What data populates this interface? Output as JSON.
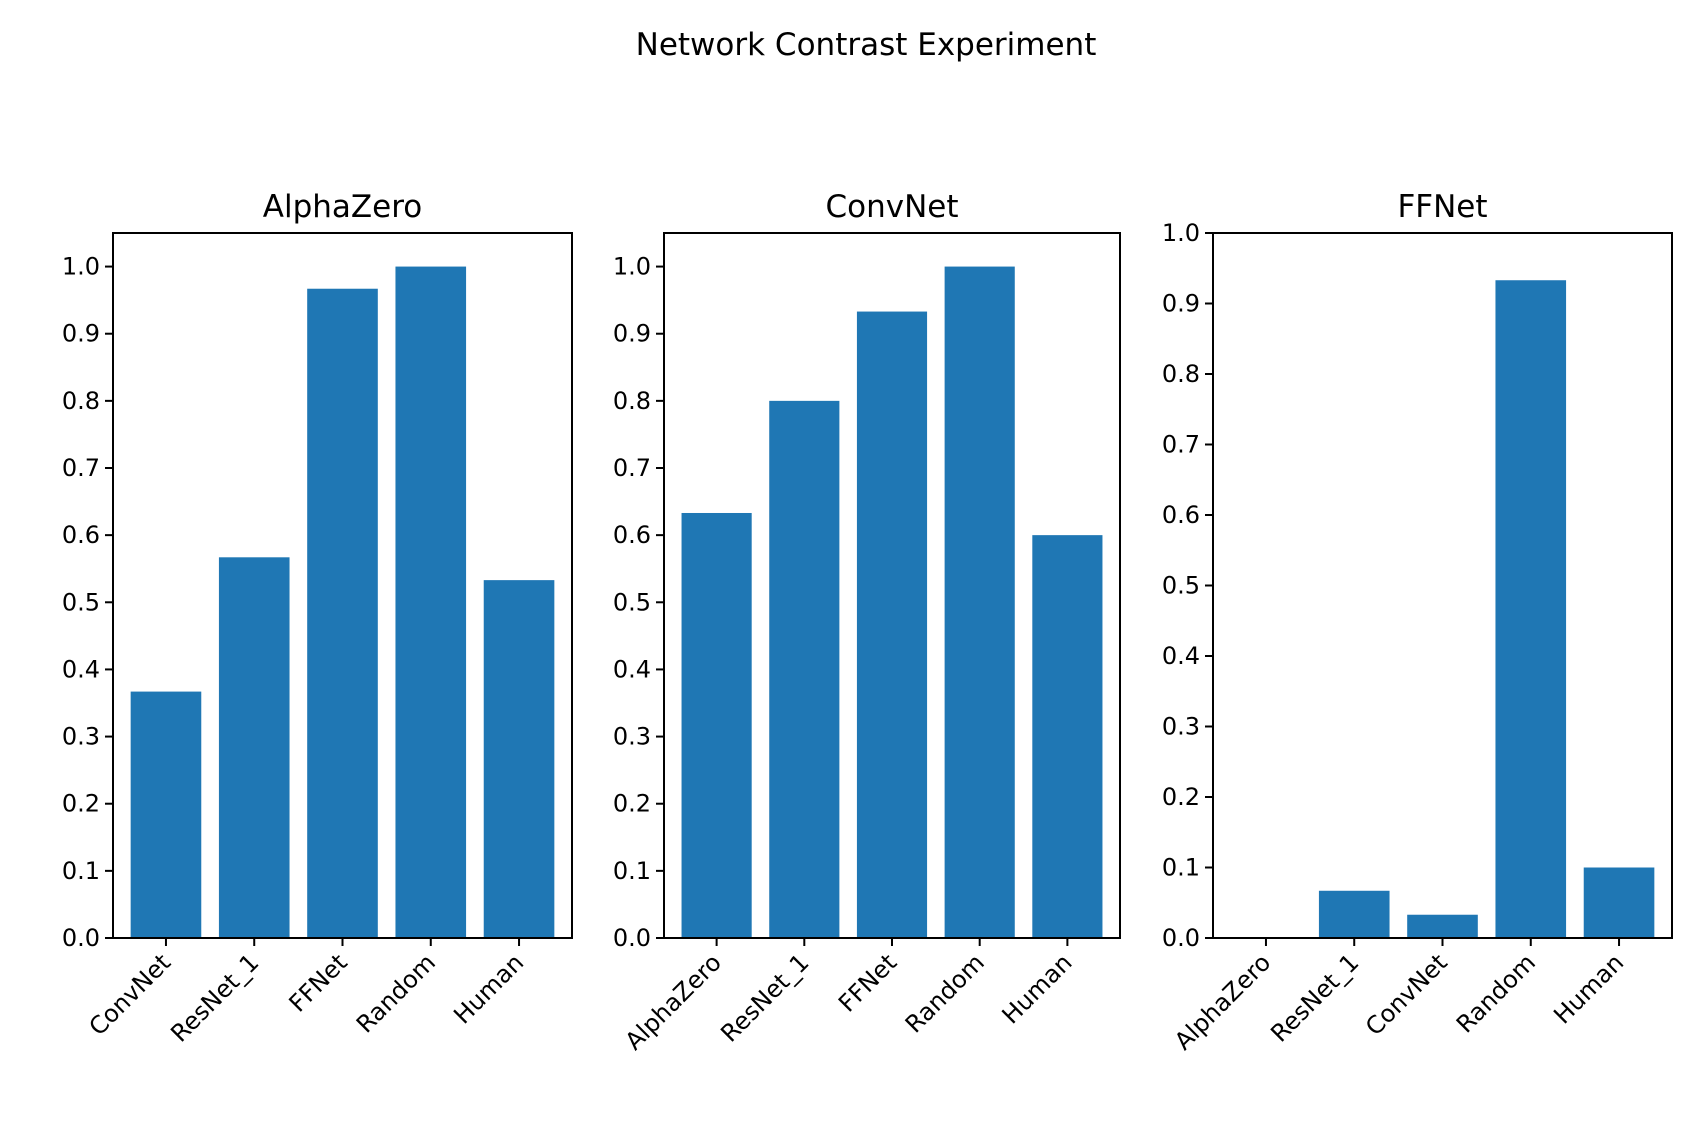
{
  "figure": {
    "suptitle": "Network Contrast Experiment"
  },
  "style": {
    "bar_color": "#1f77b4",
    "background": "#ffffff",
    "axis_color": "#000000"
  },
  "chart_data": [
    {
      "type": "bar",
      "title": "AlphaZero",
      "xlabel": "",
      "ylabel": "",
      "categories": [
        "ConvNet",
        "ResNet_1",
        "FFNet",
        "Random",
        "Human"
      ],
      "values": [
        0.367,
        0.567,
        0.967,
        1.0,
        0.533
      ],
      "ylim": [
        0.0,
        1.05
      ],
      "yticks": [
        "0.0",
        "0.1",
        "0.2",
        "0.3",
        "0.4",
        "0.5",
        "0.6",
        "0.7",
        "0.8",
        "0.9",
        "1.0"
      ],
      "grid": false,
      "legend": "none",
      "xtick_rotation": 45
    },
    {
      "type": "bar",
      "title": "ConvNet",
      "xlabel": "",
      "ylabel": "",
      "categories": [
        "AlphaZero",
        "ResNet_1",
        "FFNet",
        "Random",
        "Human"
      ],
      "values": [
        0.633,
        0.8,
        0.933,
        1.0,
        0.6
      ],
      "ylim": [
        0.0,
        1.05
      ],
      "yticks": [
        "0.0",
        "0.1",
        "0.2",
        "0.3",
        "0.4",
        "0.5",
        "0.6",
        "0.7",
        "0.8",
        "0.9",
        "1.0"
      ],
      "grid": false,
      "legend": "none",
      "xtick_rotation": 45
    },
    {
      "type": "bar",
      "title": "FFNet",
      "xlabel": "",
      "ylabel": "",
      "categories": [
        "AlphaZero",
        "ResNet_1",
        "ConvNet",
        "Random",
        "Human"
      ],
      "values": [
        0.0,
        0.067,
        0.033,
        0.933,
        0.1
      ],
      "ylim": [
        0.0,
        1.0
      ],
      "yticks": [
        "0.0",
        "0.1",
        "0.2",
        "0.3",
        "0.4",
        "0.5",
        "0.6",
        "0.7",
        "0.8",
        "0.9",
        "1.0"
      ],
      "grid": false,
      "legend": "none",
      "xtick_rotation": 45
    }
  ]
}
